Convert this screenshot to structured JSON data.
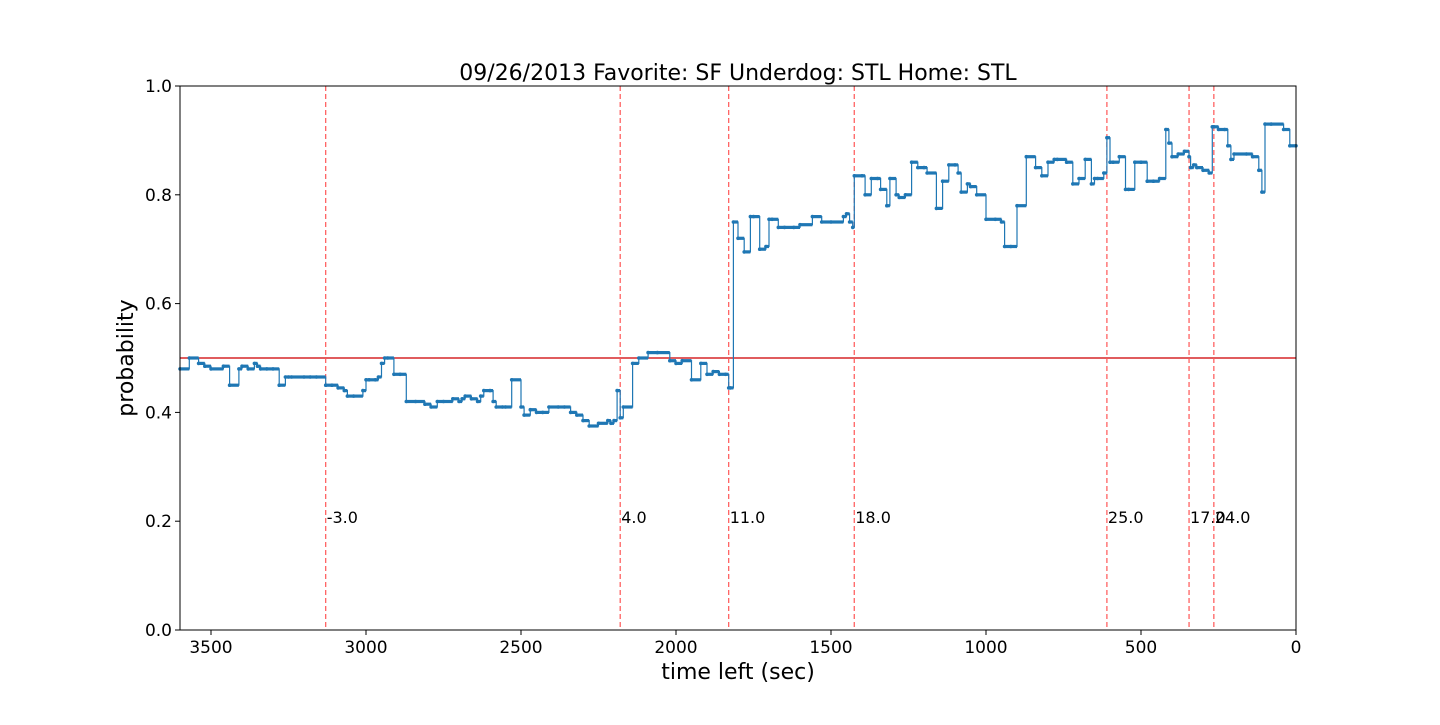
{
  "chart_data": {
    "type": "line",
    "title": "09/26/2013 Favorite: SF Underdog: STL Home: STL",
    "xlabel": "time left (sec)",
    "ylabel": "probability",
    "xlim": [
      3600,
      0
    ],
    "ylim": [
      0.0,
      1.0
    ],
    "x_ticks": [
      3500,
      3000,
      2500,
      2000,
      1500,
      1000,
      500,
      0
    ],
    "y_ticks": [
      0.0,
      0.2,
      0.4,
      0.6,
      0.8,
      1.0
    ],
    "grid": false,
    "legend": "none",
    "colors": {
      "series": "#1f77b4",
      "reference_line": "#d62728",
      "event_lines": "#ff5555"
    },
    "reference_line": {
      "y": 0.5
    },
    "events": [
      {
        "x": 3130,
        "label": "-3.0"
      },
      {
        "x": 2180,
        "label": "4.0"
      },
      {
        "x": 1830,
        "label": "11.0"
      },
      {
        "x": 1425,
        "label": "18.0"
      },
      {
        "x": 610,
        "label": "25.0"
      },
      {
        "x": 345,
        "label": "17.0"
      },
      {
        "x": 265,
        "label": "24.0"
      }
    ],
    "series": [
      {
        "x": [
          3600,
          3570,
          3540,
          3520,
          3500,
          3460,
          3440,
          3410,
          3400,
          3380,
          3360,
          3350,
          3340,
          3320,
          3300,
          3280,
          3260,
          3250,
          3240,
          3200,
          3180,
          3160,
          3130,
          3110,
          3090,
          3070,
          3060,
          3040,
          3010,
          3000,
          2990,
          2970,
          2960,
          2950,
          2940,
          2930,
          2910,
          2890,
          2870,
          2840,
          2810,
          2790,
          2770,
          2750,
          2720,
          2700,
          2690,
          2680,
          2660,
          2640,
          2630,
          2620,
          2600,
          2590,
          2580,
          2560,
          2550,
          2530,
          2500,
          2490,
          2470,
          2450,
          2430,
          2410,
          2380,
          2360,
          2340,
          2320,
          2300,
          2280,
          2250,
          2220,
          2210,
          2200,
          2190,
          2180,
          2170,
          2140,
          2120,
          2090,
          2060,
          2020,
          2000,
          1980,
          1950,
          1920,
          1900,
          1880,
          1860,
          1840,
          1830,
          1825,
          1815,
          1800,
          1780,
          1760,
          1750,
          1730,
          1710,
          1700,
          1690,
          1670,
          1650,
          1620,
          1600,
          1560,
          1530,
          1500,
          1460,
          1450,
          1440,
          1430,
          1425,
          1400,
          1390,
          1370,
          1350,
          1340,
          1320,
          1310,
          1290,
          1280,
          1260,
          1240,
          1220,
          1200,
          1190,
          1160,
          1140,
          1120,
          1100,
          1090,
          1080,
          1060,
          1050,
          1030,
          1000,
          970,
          950,
          940,
          920,
          900,
          870,
          840,
          820,
          800,
          780,
          770,
          740,
          720,
          700,
          680,
          660,
          650,
          640,
          620,
          610,
          600,
          590,
          570,
          550,
          540,
          520,
          500,
          480,
          460,
          440,
          420,
          410,
          400,
          380,
          360,
          345,
          340,
          330,
          320,
          300,
          280,
          270,
          265,
          250,
          230,
          220,
          210,
          200,
          160,
          140,
          120,
          110,
          100,
          80,
          40,
          20,
          0
        ],
        "y": [
          0.48,
          0.5,
          0.49,
          0.485,
          0.48,
          0.485,
          0.45,
          0.48,
          0.485,
          0.48,
          0.49,
          0.485,
          0.48,
          0.48,
          0.48,
          0.45,
          0.465,
          0.465,
          0.465,
          0.465,
          0.465,
          0.465,
          0.45,
          0.45,
          0.445,
          0.44,
          0.43,
          0.43,
          0.44,
          0.46,
          0.46,
          0.46,
          0.465,
          0.49,
          0.5,
          0.5,
          0.47,
          0.47,
          0.42,
          0.42,
          0.415,
          0.41,
          0.42,
          0.42,
          0.425,
          0.42,
          0.425,
          0.43,
          0.425,
          0.42,
          0.43,
          0.44,
          0.44,
          0.42,
          0.41,
          0.41,
          0.41,
          0.46,
          0.41,
          0.395,
          0.405,
          0.4,
          0.4,
          0.41,
          0.41,
          0.41,
          0.4,
          0.395,
          0.385,
          0.375,
          0.38,
          0.385,
          0.38,
          0.385,
          0.44,
          0.39,
          0.41,
          0.49,
          0.5,
          0.51,
          0.51,
          0.495,
          0.49,
          0.495,
          0.46,
          0.49,
          0.47,
          0.475,
          0.47,
          0.47,
          0.445,
          0.445,
          0.75,
          0.72,
          0.695,
          0.76,
          0.76,
          0.7,
          0.705,
          0.755,
          0.755,
          0.74,
          0.74,
          0.74,
          0.745,
          0.76,
          0.75,
          0.75,
          0.76,
          0.765,
          0.75,
          0.74,
          0.835,
          0.835,
          0.8,
          0.83,
          0.83,
          0.81,
          0.78,
          0.83,
          0.8,
          0.795,
          0.8,
          0.86,
          0.85,
          0.85,
          0.84,
          0.775,
          0.825,
          0.855,
          0.855,
          0.84,
          0.805,
          0.82,
          0.815,
          0.8,
          0.755,
          0.755,
          0.75,
          0.705,
          0.705,
          0.78,
          0.87,
          0.85,
          0.835,
          0.86,
          0.865,
          0.865,
          0.86,
          0.82,
          0.83,
          0.865,
          0.82,
          0.83,
          0.83,
          0.84,
          0.905,
          0.86,
          0.86,
          0.87,
          0.81,
          0.81,
          0.86,
          0.86,
          0.825,
          0.825,
          0.83,
          0.92,
          0.895,
          0.87,
          0.875,
          0.88,
          0.87,
          0.85,
          0.855,
          0.85,
          0.845,
          0.84,
          0.925,
          0.925,
          0.92,
          0.92,
          0.89,
          0.865,
          0.875,
          0.875,
          0.87,
          0.845,
          0.805,
          0.93,
          0.93,
          0.92,
          0.89,
          0.89
        ]
      }
    ]
  }
}
